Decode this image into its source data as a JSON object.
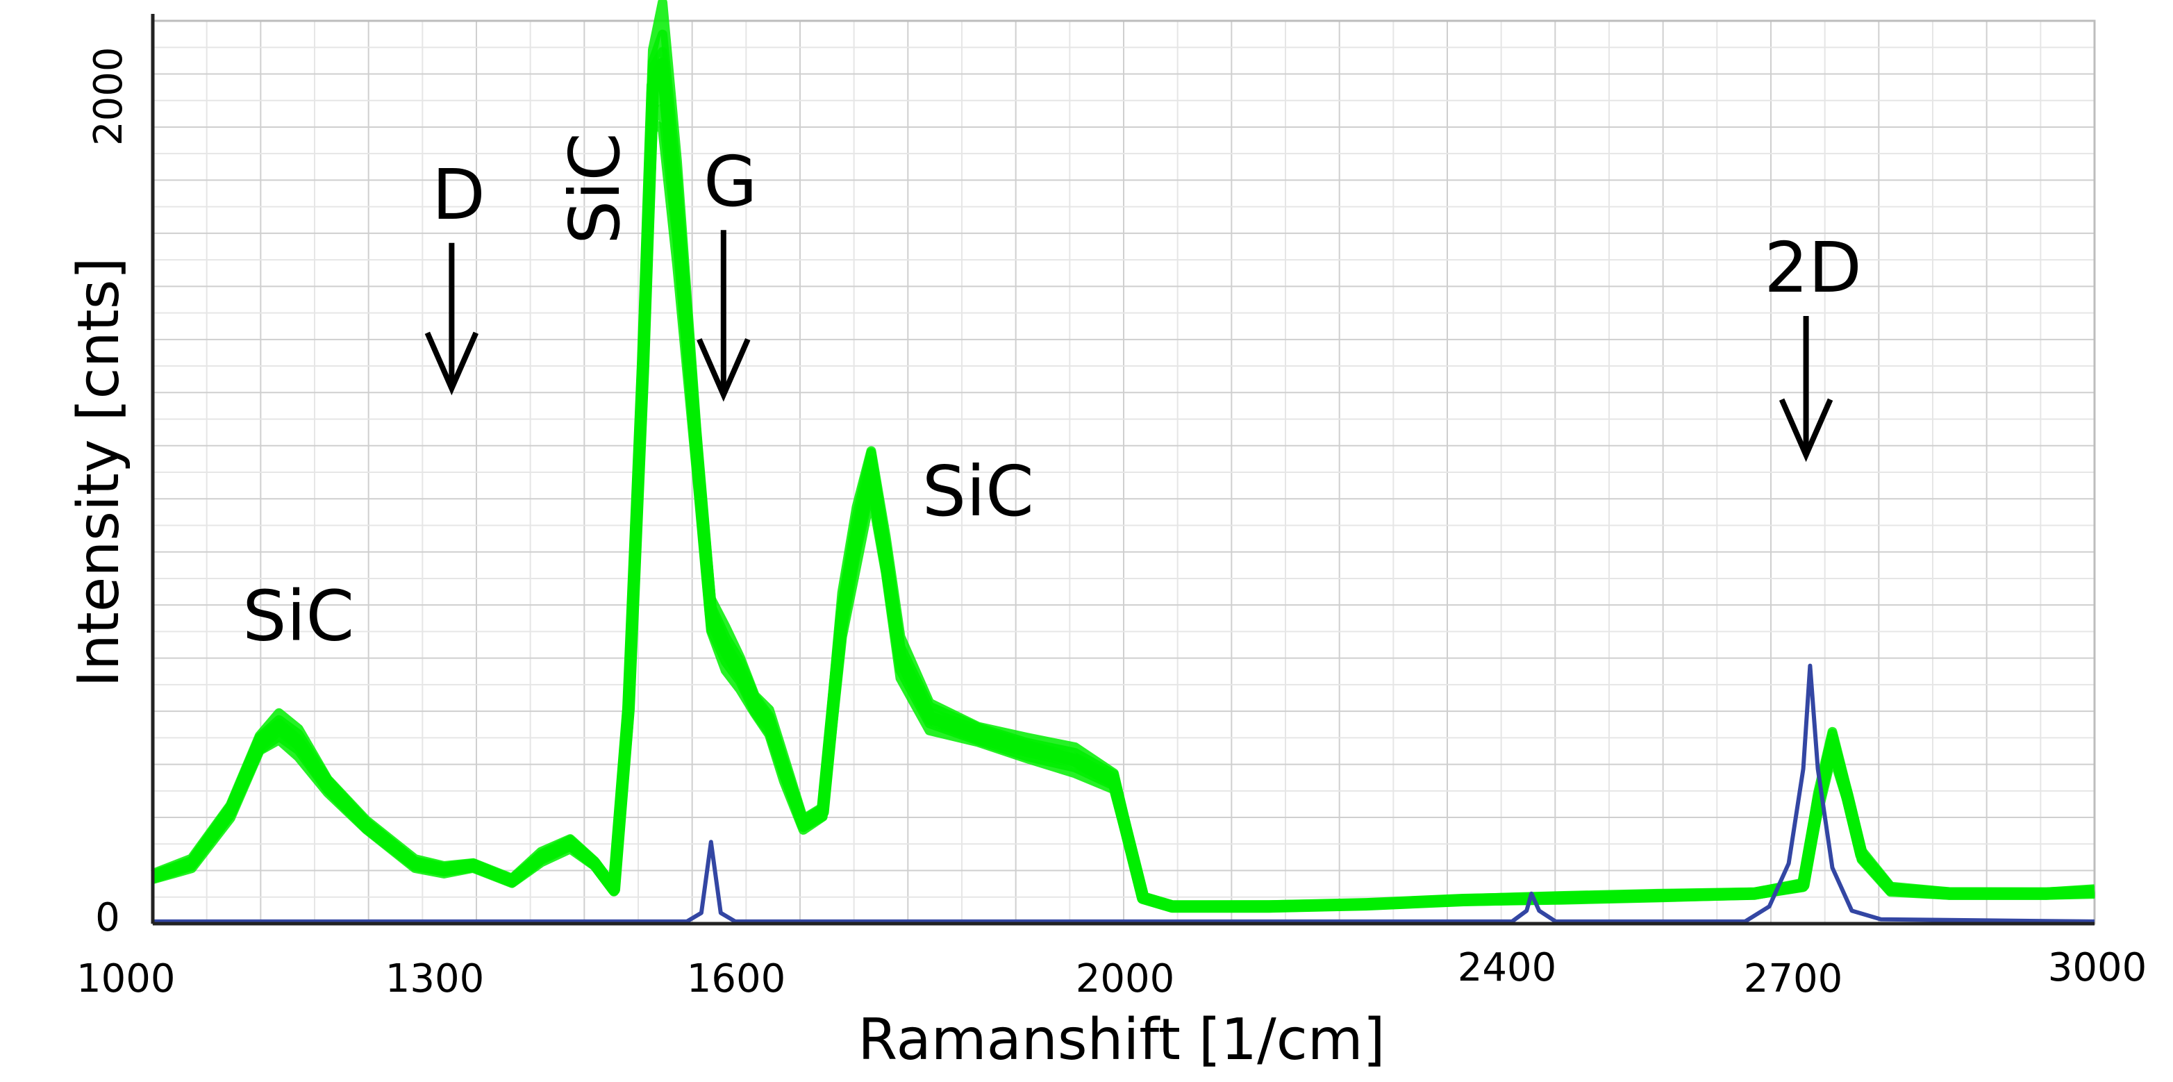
{
  "chart_data": {
    "type": "line",
    "title": "",
    "xlabel": "Ramanshift [1/cm]",
    "ylabel": "Intensity [cnts]",
    "xlim": [
      1000,
      3000
    ],
    "ylim": [
      0,
      2100
    ],
    "grid": true,
    "x_tick_labels": [
      "1000",
      "1300",
      "1600",
      "2000",
      "2400",
      "2700",
      "3000"
    ],
    "y_tick_labels": [
      "0",
      "2000"
    ],
    "series": [
      {
        "color": "#00ee00",
        "points": [
          [
            1000,
            110
          ],
          [
            1040,
            140
          ],
          [
            1080,
            260
          ],
          [
            1110,
            420
          ],
          [
            1130,
            460
          ],
          [
            1150,
            420
          ],
          [
            1180,
            320
          ],
          [
            1220,
            230
          ],
          [
            1270,
            140
          ],
          [
            1300,
            125
          ],
          [
            1330,
            135
          ],
          [
            1370,
            100
          ],
          [
            1400,
            155
          ],
          [
            1430,
            185
          ],
          [
            1455,
            140
          ],
          [
            1475,
            80
          ],
          [
            1490,
            500
          ],
          [
            1505,
            1300
          ],
          [
            1515,
            1950
          ],
          [
            1525,
            2000
          ],
          [
            1540,
            1650
          ],
          [
            1560,
            1100
          ],
          [
            1575,
            720
          ],
          [
            1590,
            640
          ],
          [
            1605,
            580
          ],
          [
            1620,
            510
          ],
          [
            1635,
            470
          ],
          [
            1650,
            360
          ],
          [
            1670,
            230
          ],
          [
            1690,
            260
          ],
          [
            1710,
            720
          ],
          [
            1725,
            900
          ],
          [
            1740,
            1050
          ],
          [
            1755,
            860
          ],
          [
            1770,
            620
          ],
          [
            1800,
            480
          ],
          [
            1850,
            440
          ],
          [
            1900,
            410
          ],
          [
            1950,
            380
          ],
          [
            1990,
            330
          ],
          [
            2020,
            60
          ],
          [
            2050,
            40
          ],
          [
            2150,
            40
          ],
          [
            2250,
            45
          ],
          [
            2350,
            55
          ],
          [
            2450,
            60
          ],
          [
            2550,
            65
          ],
          [
            2650,
            70
          ],
          [
            2700,
            90
          ],
          [
            2715,
            280
          ],
          [
            2730,
            420
          ],
          [
            2745,
            300
          ],
          [
            2760,
            160
          ],
          [
            2790,
            80
          ],
          [
            2850,
            70
          ],
          [
            2950,
            70
          ],
          [
            3000,
            75
          ]
        ]
      },
      {
        "color": "#3346a3",
        "points": [
          [
            1000,
            5
          ],
          [
            1550,
            5
          ],
          [
            1565,
            25
          ],
          [
            1575,
            190
          ],
          [
            1585,
            25
          ],
          [
            1600,
            5
          ],
          [
            2400,
            5
          ],
          [
            2415,
            30
          ],
          [
            2420,
            70
          ],
          [
            2428,
            30
          ],
          [
            2445,
            5
          ],
          [
            2640,
            5
          ],
          [
            2665,
            40
          ],
          [
            2685,
            140
          ],
          [
            2700,
            360
          ],
          [
            2707,
            600
          ],
          [
            2715,
            360
          ],
          [
            2730,
            130
          ],
          [
            2750,
            30
          ],
          [
            2780,
            10
          ],
          [
            3000,
            5
          ]
        ]
      }
    ],
    "annotations": [
      {
        "text": "SiC",
        "x": 1150,
        "y": 660
      },
      {
        "text": "D",
        "x": 1315,
        "y": 1640,
        "arrow_to": 1245
      },
      {
        "text": "SiC",
        "x": 1480,
        "y": 1710,
        "rotated": true
      },
      {
        "text": "G",
        "x": 1595,
        "y": 1670,
        "arrow_to": 1230
      },
      {
        "text": "SiC",
        "x": 1850,
        "y": 950
      },
      {
        "text": "2D",
        "x": 2710,
        "y": 1470,
        "arrow_to": 1090
      }
    ]
  }
}
